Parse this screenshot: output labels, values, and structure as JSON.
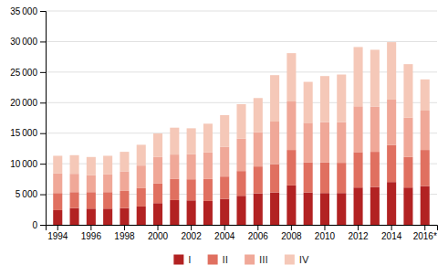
{
  "chart_data": {
    "type": "bar",
    "stacked": true,
    "categories": [
      "1994",
      null,
      "1996",
      null,
      "1998",
      null,
      "2000",
      null,
      "2002",
      null,
      "2004",
      null,
      "2006",
      null,
      "2008",
      null,
      "2010",
      null,
      "2012",
      null,
      "2014",
      null,
      "2016*"
    ],
    "series": [
      {
        "name": "I",
        "color": "#b22222",
        "values": [
          2400,
          2750,
          2650,
          2650,
          2750,
          3000,
          3550,
          4050,
          4000,
          3900,
          4250,
          4750,
          5150,
          5300,
          6450,
          5300,
          5200,
          5200,
          6100,
          6200,
          7000,
          6100,
          6350
        ]
      },
      {
        "name": "II",
        "color": "#e07060",
        "values": [
          2800,
          2600,
          2700,
          2700,
          2800,
          3000,
          3250,
          3450,
          3450,
          3600,
          3650,
          4050,
          4400,
          4600,
          5800,
          4900,
          5000,
          4950,
          5800,
          5750,
          6050,
          5000,
          5900
        ]
      },
      {
        "name": "III",
        "color": "#f0a898",
        "values": [
          3200,
          3000,
          2800,
          2900,
          3200,
          3700,
          4300,
          4000,
          4100,
          4350,
          4850,
          5300,
          5600,
          7000,
          7950,
          6500,
          6600,
          6650,
          7500,
          7400,
          7450,
          6450,
          6450
        ]
      },
      {
        "name": "IV",
        "color": "#f5c8b8",
        "values": [
          2900,
          3050,
          2950,
          3050,
          3200,
          3400,
          3850,
          4400,
          4250,
          4700,
          5200,
          5650,
          5600,
          7600,
          7900,
          6700,
          7550,
          7800,
          9700,
          9300,
          9400,
          8750,
          5100
        ]
      }
    ],
    "ylim": [
      0,
      35000
    ],
    "yticks": [
      0,
      {
        "value": 5000,
        "label": "5 000"
      },
      {
        "value": 10000,
        "label": "10 000"
      },
      {
        "value": 15000,
        "label": "15 000"
      },
      {
        "value": 20000,
        "label": "20 000"
      },
      {
        "value": 25000,
        "label": "25 000"
      },
      {
        "value": 30000,
        "label": "30 000"
      },
      {
        "value": 35000,
        "label": "35 000"
      }
    ],
    "grid": true,
    "legend": "bottom"
  }
}
